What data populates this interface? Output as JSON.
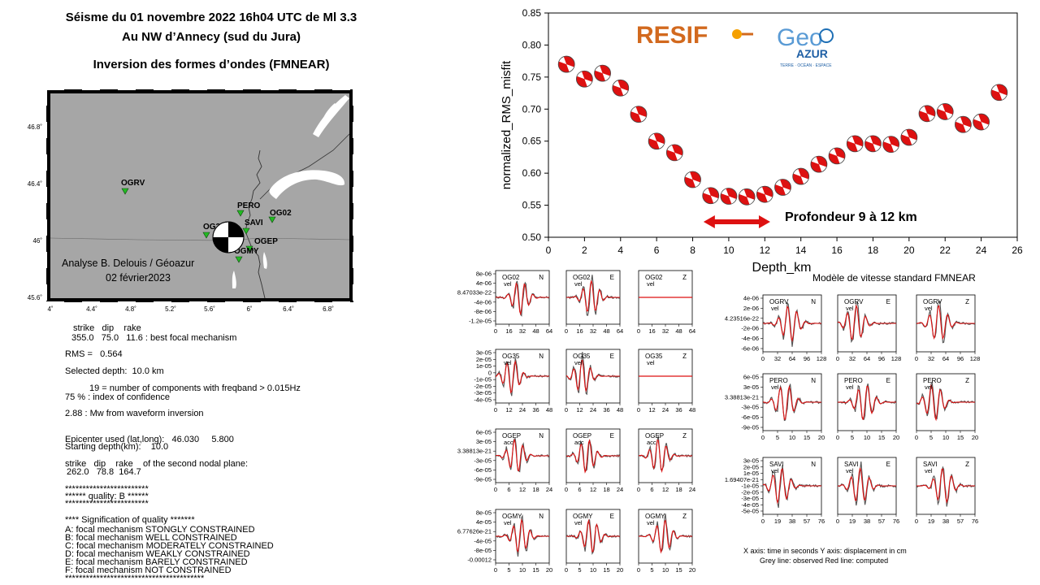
{
  "header": {
    "line1": "Séisme du 01 novembre 2022  16h04 UTC de Ml 3.3",
    "line2": "Au NW d’Annecy (sud du Jura)",
    "line3": "Inversion des formes d’ondes (FMNEAR)"
  },
  "map": {
    "lat_ticks": [
      "46.8˚",
      "46.4˚",
      "46˚",
      "45.6˚"
    ],
    "lon_ticks": [
      "4˚",
      "4.4˚",
      "4.8˚",
      "5.2˚",
      "5.6˚",
      "6˚",
      "6.4˚",
      "6.8˚"
    ],
    "stations": [
      "OGRV",
      "PERO",
      "OG02",
      "OG35",
      "SAVI",
      "OGEP",
      "OGMY"
    ],
    "credit1": "Analyse B. Delouis / Géoazur",
    "credit2": "02 février2023",
    "colors": {
      "land": "#a6a6a6",
      "station": "#22bb22",
      "lake": "#ffffff"
    }
  },
  "results": {
    "l01": "strike   dip    rake",
    "l02": "355.0   75.0   11.6 : best focal mechanism",
    "l03": "RMS =   0.564",
    "l04": "Selected depth:  10.0 km",
    "l05": "19 = number of components with freqband > 0.015Hz",
    "l06": "75 % : index of confidence",
    "l07": "2.88 : Mw from waveform inversion",
    "l08": "Epicenter used (lat,long):   46.030     5.800",
    "l09": "Starting depth(km):    10.0",
    "l10": "strike   dip    rake    of the second nodal plane:",
    "l11": "262.0   78.8  164.7",
    "l12": "************************",
    "l13": "****** quality: B ******",
    "l14": "************************",
    "l15": "**** Signification of quality *******",
    "l16": "A: focal mechanism STONGLY CONSTRAINED",
    "l17": "B: focal mechanism WELL CONSTRAINED",
    "l18": "C: focal mechanism MODERATELY CONSTRAINED",
    "l19": "D: focal mechanism WEAKLY CONSTRAINED",
    "l20": "E: focal mechanism BARELY CONSTRAINED",
    "l21": "F: focal mechanism NOT CONSTRAINED",
    "l22": "****************************************"
  },
  "logos": {
    "resif": "RESIF",
    "geo": "Geo",
    "azur": "AZUR",
    "azur_sub": "TERRE · OCÉAN · ESPACE"
  },
  "depth_label": "Profondeur  9 à 12 km",
  "velocity_model": "Modèle de vitesse standard FMNEAR",
  "chart_data": {
    "type": "scatter",
    "xlabel": "Depth_km",
    "ylabel": "normalized_RMS_misfit",
    "xlim": [
      0,
      26
    ],
    "ylim": [
      0.5,
      0.85
    ],
    "xticks": [
      0,
      2,
      4,
      6,
      8,
      10,
      12,
      14,
      16,
      18,
      20,
      22,
      24,
      26
    ],
    "yticks": [
      0.5,
      0.55,
      0.6,
      0.65,
      0.7,
      0.75,
      0.8,
      0.85
    ],
    "x": [
      1,
      2,
      3,
      4,
      5,
      6,
      7,
      8,
      9,
      10,
      11,
      12,
      13,
      14,
      15,
      16,
      17,
      18,
      19,
      20,
      21,
      22,
      23,
      24,
      25
    ],
    "y": [
      0.77,
      0.747,
      0.756,
      0.733,
      0.692,
      0.65,
      0.632,
      0.59,
      0.565,
      0.564,
      0.563,
      0.567,
      0.578,
      0.595,
      0.614,
      0.627,
      0.646,
      0.646,
      0.645,
      0.656,
      0.693,
      0.696,
      0.676,
      0.68,
      0.726
    ],
    "marker_colors": {
      "fill": "#ffffff",
      "quadrant": "#dd1111",
      "outline": "#444444"
    },
    "highlight_range": [
      8.6,
      12.3
    ],
    "highlight_color": "#dd1111"
  },
  "waveforms": {
    "colors": {
      "observed": "#555555",
      "computed": "#dd1111"
    },
    "left_rows": [
      {
        "station": "OG02",
        "qty": "vel",
        "ylabels": [
          "8e-06",
          "4e-06",
          "8.47033e-22",
          "-4e-06",
          "-8e-06",
          "-1.2e-05"
        ],
        "xticks": [
          "0",
          "16",
          "32",
          "48",
          "64"
        ]
      },
      {
        "station": "OG35",
        "qty": "vel",
        "ylabels": [
          "3e-05",
          "2e-05",
          "1e-05",
          "0",
          "-1e-05",
          "-2e-05",
          "-3e-05",
          "-4e-05"
        ],
        "xticks": [
          "0",
          "12",
          "24",
          "36",
          "48"
        ]
      },
      {
        "station": "OGEP",
        "qty": "acc",
        "ylabels": [
          "6e-05",
          "3e-05",
          "3.38813e-21",
          "-3e-05",
          "-6e-05",
          "-9e-05"
        ],
        "xticks": [
          "0",
          "6",
          "12",
          "18",
          "24"
        ]
      },
      {
        "station": "OGMY",
        "qty": "vel",
        "ylabels": [
          "8e-05",
          "4e-05",
          "6.77626e-21",
          "-4e-05",
          "-8e-05",
          "-0.00012"
        ],
        "xticks": [
          "0",
          "5",
          "10",
          "15",
          "20"
        ]
      }
    ],
    "right_rows": [
      {
        "station": "OGRV",
        "qty": "vel",
        "ylabels": [
          "4e-06",
          "2e-06",
          "4.23516e-22",
          "-2e-06",
          "-4e-06",
          "-6e-06"
        ],
        "xticks": [
          "0",
          "32",
          "64",
          "96",
          "128"
        ]
      },
      {
        "station": "PERO",
        "qty": "vel",
        "ylabels": [
          "6e-05",
          "3e-05",
          "3.38813e-21",
          "-3e-05",
          "-6e-05",
          "-9e-05"
        ],
        "xticks": [
          "0",
          "5",
          "10",
          "15",
          "20"
        ]
      },
      {
        "station": "SAVI",
        "qty": "vel",
        "ylabels": [
          "3e-05",
          "2e-05",
          "1e-05",
          "1.69407e-21",
          "-1e-05",
          "-2e-05",
          "-3e-05",
          "-4e-05",
          "-5e-05"
        ],
        "xticks": [
          "0",
          "19",
          "38",
          "57",
          "76"
        ]
      }
    ],
    "components": [
      "N",
      "E",
      "Z"
    ],
    "footer1": "X axis: time in seconds     Y axis: displacement in cm",
    "footer2": "Grey line: observed     Red line: computed"
  }
}
